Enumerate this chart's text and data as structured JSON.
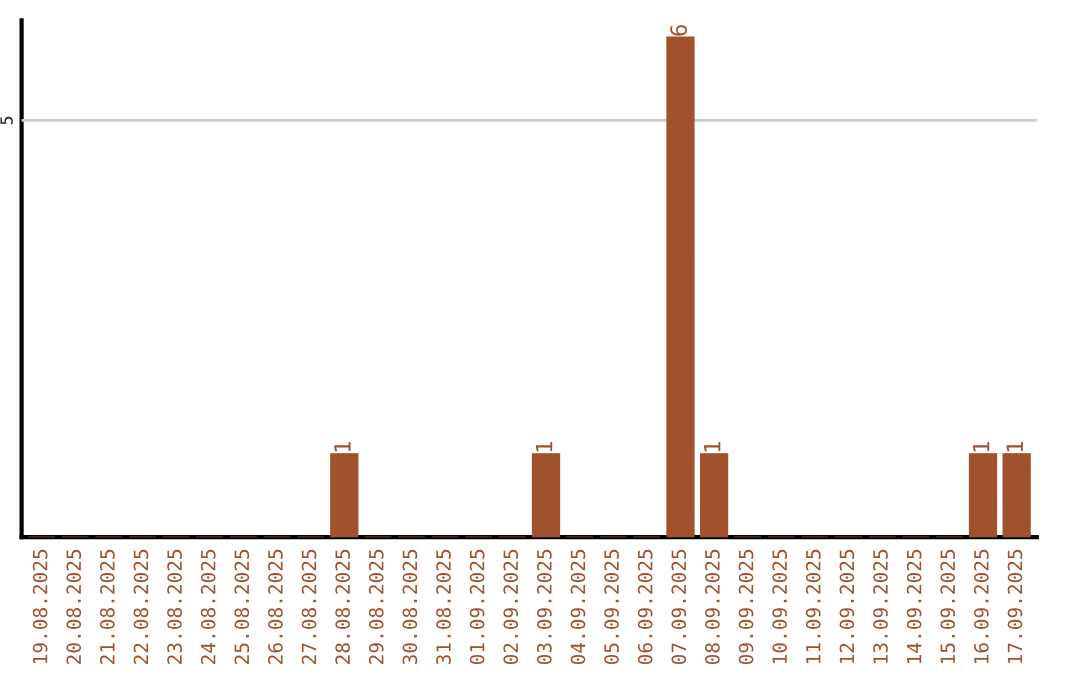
{
  "chart_data": {
    "type": "bar",
    "categories": [
      "19.08.2025",
      "20.08.2025",
      "21.08.2025",
      "22.08.2025",
      "23.08.2025",
      "24.08.2025",
      "25.08.2025",
      "26.08.2025",
      "27.08.2025",
      "28.08.2025",
      "29.08.2025",
      "30.08.2025",
      "31.08.2025",
      "01.09.2025",
      "02.09.2025",
      "03.09.2025",
      "04.09.2025",
      "05.09.2025",
      "06.09.2025",
      "07.09.2025",
      "08.09.2025",
      "09.09.2025",
      "10.09.2025",
      "11.09.2025",
      "12.09.2025",
      "13.09.2025",
      "14.09.2025",
      "15.09.2025",
      "16.09.2025",
      "17.09.2025"
    ],
    "values": [
      0,
      0,
      0,
      0,
      0,
      0,
      0,
      0,
      0,
      1,
      0,
      0,
      0,
      0,
      0,
      1,
      0,
      0,
      0,
      6,
      1,
      0,
      0,
      0,
      0,
      0,
      0,
      0,
      1,
      1
    ],
    "value_labels": [
      null,
      null,
      null,
      null,
      null,
      null,
      null,
      null,
      null,
      "1",
      null,
      null,
      null,
      null,
      null,
      "1",
      null,
      null,
      null,
      "6",
      "1",
      null,
      null,
      null,
      null,
      null,
      null,
      null,
      "1",
      "1"
    ],
    "color": "#a0522d",
    "ylim": [
      0,
      6.2
    ],
    "yticks": [
      5
    ],
    "grid": "y"
  }
}
